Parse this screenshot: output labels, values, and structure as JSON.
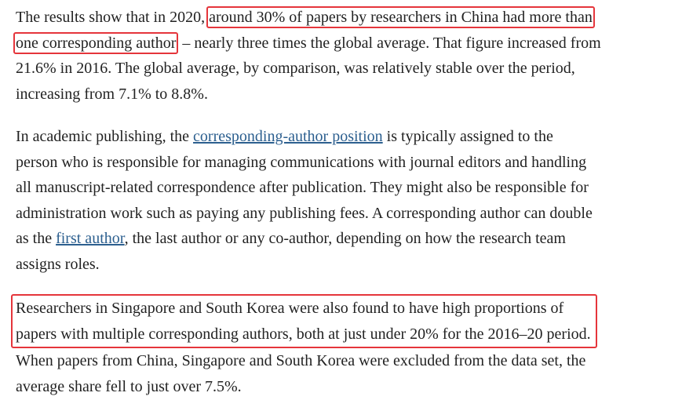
{
  "paragraphs": [
    {
      "lines": [
        [
          "The results show that in 2020, ",
          "around 30% of papers by researchers in China had more than"
        ],
        [
          "one corresponding author",
          " – nearly three times the global average. That figure increased from"
        ],
        [
          "21.6% in 2016. The global average, by comparison, was relatively stable over the period,"
        ],
        [
          "increasing from 7.1% to 8.8%."
        ]
      ]
    },
    {
      "lines": [
        [
          "In academic publishing, the ",
          "corresponding-author position",
          " is typically assigned to the"
        ],
        [
          "person who is responsible for managing communications with journal editors and handling"
        ],
        [
          "all manuscript-related correspondence after publication. They might also be responsible for"
        ],
        [
          "administration work such as paying any publishing fees. A corresponding author can double"
        ],
        [
          "as the ",
          "first author",
          ", the last author or any co-author, depending on how the research team"
        ],
        [
          "assigns roles."
        ]
      ]
    },
    {
      "lines": [
        [
          "Researchers in Singapore and South Korea were also found to have high proportions of"
        ],
        [
          "papers with multiple corresponding authors, both at just under 20% for the 2016–20 period."
        ],
        [
          "When papers from China, Singapore and South Korea were excluded from the data set, the"
        ],
        [
          "average share fell to just over 7.5%."
        ]
      ]
    }
  ]
}
